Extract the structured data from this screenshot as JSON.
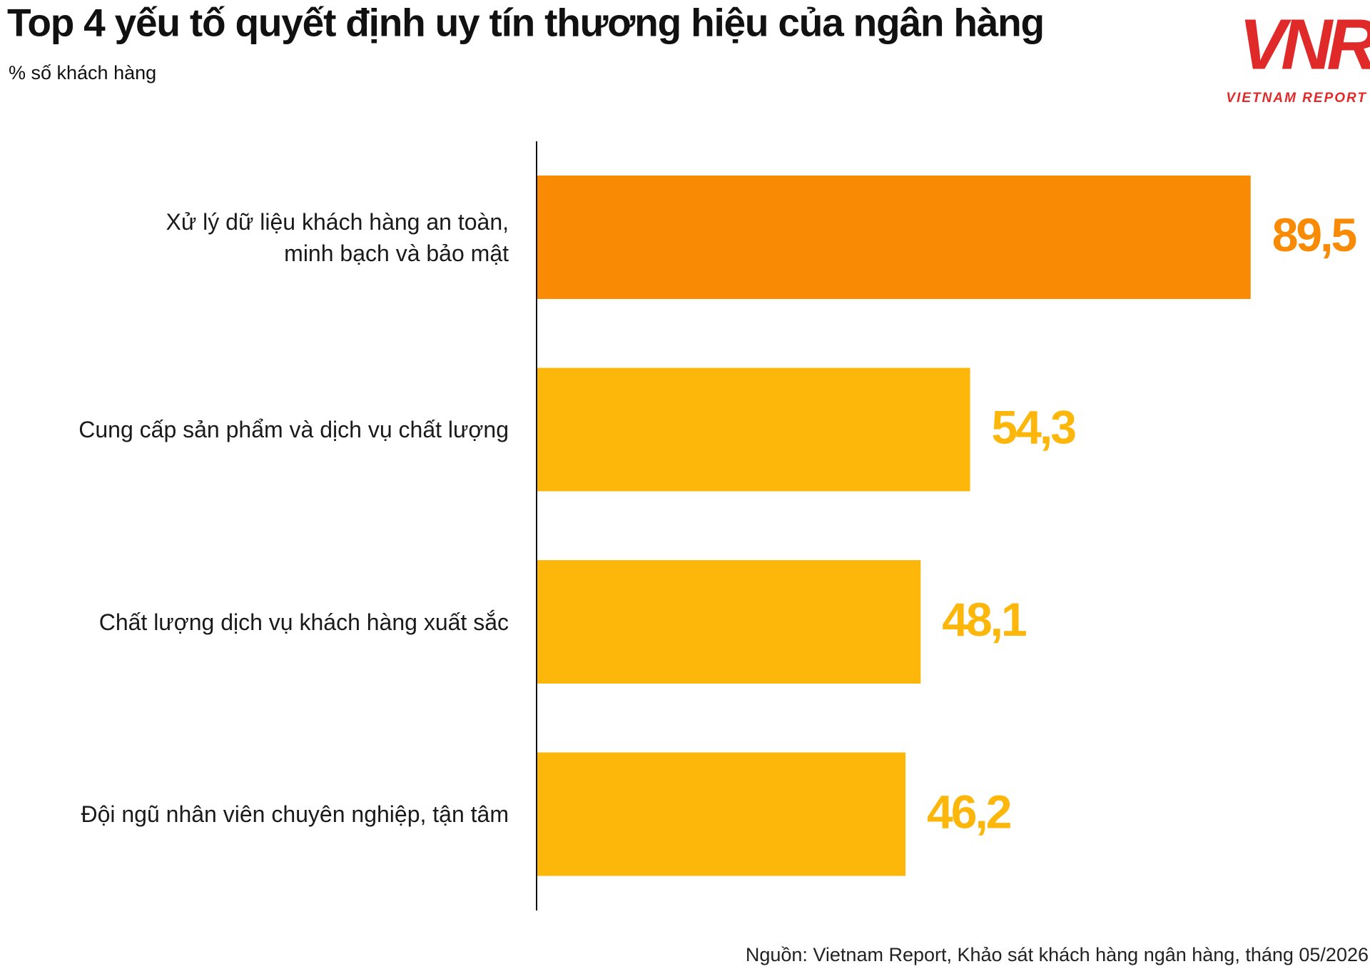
{
  "chart_data": {
    "type": "hbar",
    "title": "Top 4 yếu tố quyết định uy tín thương hiệu của ngân hàng",
    "subtitle": "% số khách hàng",
    "categories": [
      "Xử lý dữ liệu khách hàng an toàn,\nminh bạch và bảo mật",
      "Cung cấp sản phẩm và dịch vụ chất lượng",
      "Chất lượng dịch vụ khách hàng xuất sắc",
      "Đội ngũ nhân viên chuyên nghiệp, tận tâm"
    ],
    "values": [
      89.5,
      54.3,
      48.1,
      46.2
    ],
    "value_labels": [
      "89,5",
      "54,3",
      "48,1",
      "46,2"
    ],
    "colors": [
      "#f98a04",
      "#fdb60a",
      "#fdb60a",
      "#fdb60a"
    ],
    "source": "Nguồn: Vietnam Report, Khảo sát khách hàng ngân hàng, tháng 05/2026"
  },
  "logo": {
    "mark": "VNR",
    "tagline": "VIETNAM REPORT"
  }
}
